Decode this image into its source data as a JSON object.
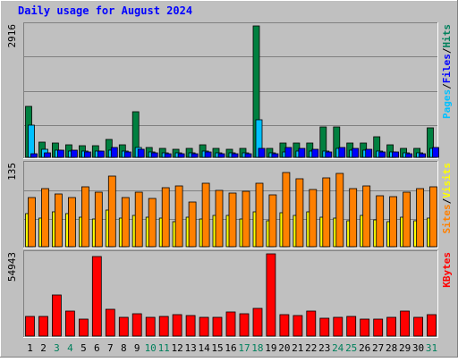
{
  "title": "Daily usage for August 2024",
  "colors": {
    "background": "#c0c0c0",
    "title": "#0000ff",
    "axis_text": "#000000",
    "gridline": "#808080",
    "hits": "#008040",
    "files": "#00c0ff",
    "pages": "#0000ff",
    "visits": "#ffff00",
    "sites": "#ff8000",
    "kbytes": "#ff0000",
    "weekend_label": "#00805c"
  },
  "chart_data": [
    {
      "type": "bar",
      "name": "hits-files-pages",
      "categories": [
        "1",
        "2",
        "3",
        "4",
        "5",
        "6",
        "7",
        "8",
        "9",
        "10",
        "11",
        "12",
        "13",
        "14",
        "15",
        "16",
        "17",
        "18",
        "19",
        "20",
        "21",
        "22",
        "23",
        "24",
        "25",
        "26",
        "27",
        "28",
        "29",
        "30",
        "31"
      ],
      "weekend_days": [
        "3",
        "4",
        "10",
        "11",
        "17",
        "18",
        "24",
        "25",
        "31"
      ],
      "y_max_label": "2916",
      "ylim": [
        0,
        2916
      ],
      "right_label_parts": [
        {
          "text": "Pages",
          "color_key": "pages_label"
        },
        {
          "text": "/",
          "color_key": "sep"
        },
        {
          "text": "Files",
          "color_key": "files_label"
        },
        {
          "text": "/",
          "color_key": "sep"
        },
        {
          "text": "Hits",
          "color_key": "hits_label"
        }
      ],
      "series": [
        {
          "name": "Hits",
          "values": [
            1135,
            342,
            316,
            282,
            264,
            264,
            395,
            282,
            1017,
            210,
            193,
            175,
            193,
            281,
            193,
            176,
            193,
            2916,
            193,
            316,
            316,
            316,
            684,
            684,
            316,
            316,
            456,
            281,
            193,
            193,
            650
          ]
        },
        {
          "name": "Files",
          "values": [
            720,
            176,
            158,
            141,
            141,
            141,
            158,
            141,
            210,
            123,
            106,
            106,
            106,
            141,
            106,
            106,
            106,
            842,
            106,
            123,
            141,
            141,
            141,
            193,
            158,
            158,
            141,
            123,
            106,
            106,
            193
          ]
        },
        {
          "name": "Pages",
          "values": [
            88,
            106,
            158,
            158,
            123,
            141,
            210,
            123,
            176,
            106,
            88,
            88,
            88,
            123,
            88,
            88,
            88,
            193,
            88,
            210,
            193,
            176,
            123,
            210,
            193,
            176,
            123,
            123,
            88,
            88,
            210
          ]
        }
      ]
    },
    {
      "type": "bar",
      "name": "visits-sites",
      "categories": [
        "1",
        "2",
        "3",
        "4",
        "5",
        "6",
        "7",
        "8",
        "9",
        "10",
        "11",
        "12",
        "13",
        "14",
        "15",
        "16",
        "17",
        "18",
        "19",
        "20",
        "21",
        "22",
        "23",
        "24",
        "25",
        "26",
        "27",
        "28",
        "29",
        "30",
        "31"
      ],
      "y_max_label": "135",
      "ylim": [
        0,
        135
      ],
      "right_label_parts": [
        {
          "text": "Sites",
          "color_key": "sites_label"
        },
        {
          "text": "/",
          "color_key": "sep"
        },
        {
          "text": "Visits",
          "color_key": "visits_label"
        }
      ],
      "series": [
        {
          "name": "Visits",
          "values": [
            54,
            47,
            57,
            54,
            49,
            45,
            60,
            47,
            52,
            49,
            47,
            41,
            49,
            45,
            51,
            52,
            45,
            57,
            43,
            56,
            52,
            57,
            48,
            47,
            43,
            51,
            44,
            41,
            49,
            42,
            47
          ]
        },
        {
          "name": "Sites",
          "values": [
            81,
            96,
            87,
            81,
            98,
            90,
            116,
            80,
            89,
            79,
            97,
            100,
            73,
            104,
            93,
            88,
            91,
            104,
            85,
            122,
            112,
            94,
            113,
            120,
            96,
            100,
            84,
            82,
            89,
            96,
            99
          ]
        }
      ]
    },
    {
      "type": "bar",
      "name": "kbytes",
      "categories": [
        "1",
        "2",
        "3",
        "4",
        "5",
        "6",
        "7",
        "8",
        "9",
        "10",
        "11",
        "12",
        "13",
        "14",
        "15",
        "16",
        "17",
        "18",
        "19",
        "20",
        "21",
        "22",
        "23",
        "24",
        "25",
        "26",
        "27",
        "28",
        "29",
        "30",
        "31"
      ],
      "y_max_label": "54943",
      "ylim": [
        0,
        54943
      ],
      "right_label_parts": [
        {
          "text": "KBytes",
          "color_key": "kbytes_label"
        }
      ],
      "series": [
        {
          "name": "KBytes",
          "values": [
            13000,
            13000,
            27700,
            16500,
            11100,
            53000,
            18200,
            12600,
            15100,
            12300,
            13100,
            14100,
            13900,
            12800,
            12300,
            16000,
            14900,
            18600,
            54900,
            14300,
            13700,
            16700,
            12000,
            12700,
            13300,
            11200,
            11300,
            12700,
            16500,
            12600,
            14200
          ]
        }
      ]
    }
  ]
}
